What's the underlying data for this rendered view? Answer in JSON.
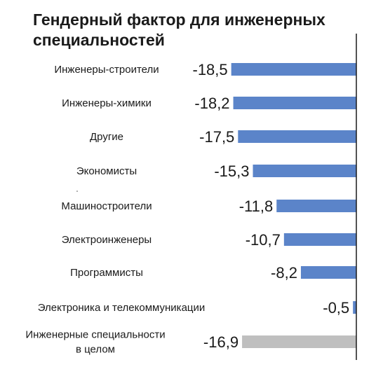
{
  "title": {
    "line1": "Гендерный фактор для инженерных",
    "line2": "специальностей"
  },
  "colors": {
    "bar_primary": "#5b84c9",
    "bar_total": "#bfbfbf",
    "axis": "#1a1a1a",
    "text": "#1a1a1a"
  },
  "chart_data": {
    "type": "bar",
    "orientation": "horizontal",
    "title": "Гендерный фактор для инженерных специальностей",
    "categories": [
      [
        "Инженеры-строители"
      ],
      [
        "Инженеры-химики"
      ],
      [
        "Другие"
      ],
      [
        "Экономисты"
      ],
      [
        "Машиностроители"
      ],
      [
        "Электроинженеры"
      ],
      [
        "Программисты"
      ],
      [
        "Электроника и телекоммуникации"
      ],
      [
        "Инженерные специальности",
        "в целом"
      ]
    ],
    "values": [
      -18.5,
      -18.2,
      -17.5,
      -15.3,
      -11.8,
      -10.7,
      -8.2,
      -0.5,
      -16.9
    ],
    "value_labels": [
      "-18,5",
      "-18,2",
      "-17,5",
      "-15,3",
      "-11,8",
      "-10,7",
      "-8,2",
      "-0,5",
      "-16,9"
    ],
    "highlight_index": 8,
    "xlim": [
      -18.8,
      0
    ],
    "grid": false,
    "legend": "none"
  }
}
